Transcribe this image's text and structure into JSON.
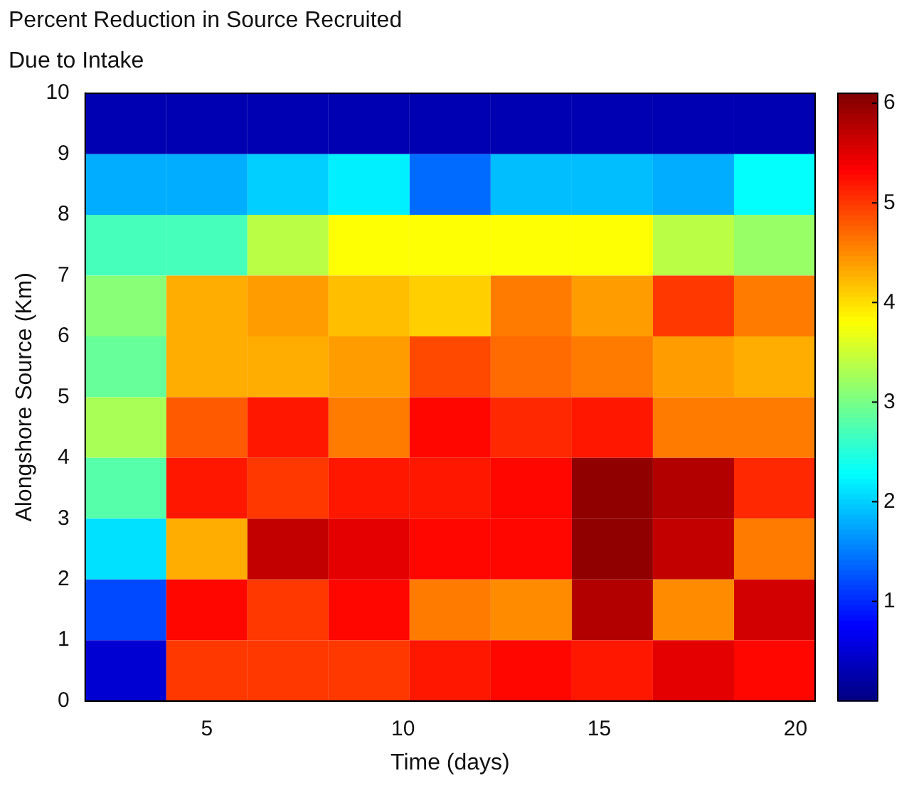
{
  "chart_data": {
    "type": "heatmap",
    "title": "Percent Reduction in Source Recruited\nDue to Intake",
    "xlabel": "Time (days)",
    "ylabel": "Alongshore Source (Km)",
    "xlim": [
      1.9,
      20.5
    ],
    "xticks": [
      5,
      10,
      15,
      20
    ],
    "ylim": [
      0,
      10
    ],
    "yticks": [
      0,
      1,
      2,
      3,
      4,
      5,
      6,
      7,
      8,
      9,
      10
    ],
    "clim": [
      0,
      6.1
    ],
    "cticks": [
      1,
      2,
      3,
      4,
      5,
      6
    ],
    "cells": [
      [
        0.3,
        0.3,
        0.3,
        0.3,
        0.3,
        0.3,
        0.3,
        0.3,
        0.3
      ],
      [
        1.8,
        1.8,
        2.0,
        2.2,
        1.4,
        1.9,
        1.9,
        1.8,
        2.3
      ],
      [
        2.7,
        2.7,
        3.4,
        3.8,
        3.8,
        3.8,
        3.8,
        3.4,
        3.2
      ],
      [
        3.1,
        4.3,
        4.4,
        4.2,
        4.1,
        4.6,
        4.4,
        5.0,
        4.6
      ],
      [
        2.9,
        4.3,
        4.3,
        4.4,
        4.9,
        4.7,
        4.6,
        4.4,
        4.3
      ],
      [
        3.3,
        4.8,
        5.2,
        4.6,
        5.3,
        5.1,
        5.2,
        4.6,
        4.6
      ],
      [
        2.8,
        5.2,
        5.0,
        5.2,
        5.2,
        5.3,
        6.0,
        5.8,
        5.1
      ],
      [
        2.1,
        4.3,
        5.7,
        5.5,
        5.3,
        5.3,
        6.0,
        5.7,
        4.6
      ],
      [
        1.2,
        5.3,
        5.0,
        5.3,
        4.6,
        4.5,
        5.8,
        4.5,
        5.6
      ],
      [
        0.5,
        5.0,
        5.0,
        5.0,
        5.2,
        5.3,
        5.2,
        5.5,
        5.3
      ]
    ]
  }
}
